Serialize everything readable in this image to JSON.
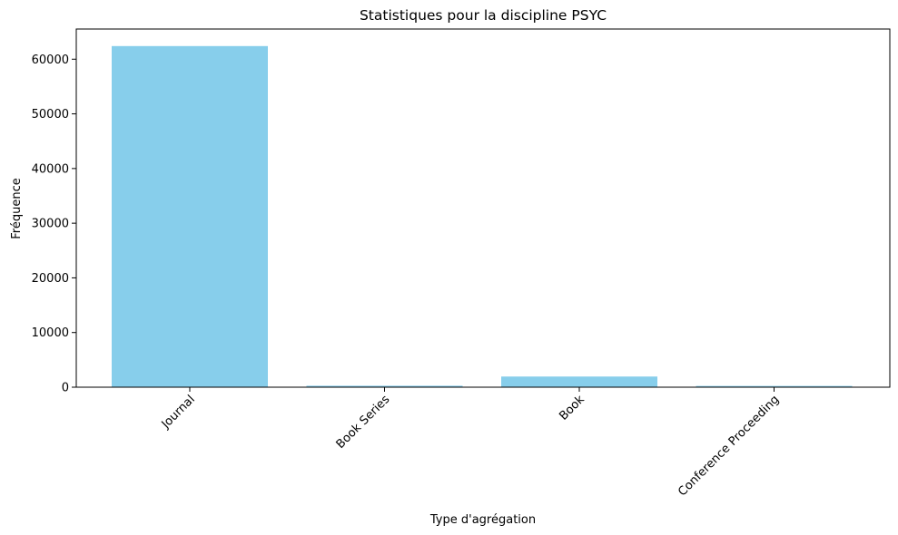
{
  "chart_data": {
    "type": "bar",
    "title": "Statistiques pour la discipline PSYC",
    "xlabel": "Type d'agrégation",
    "ylabel": "Fréquence",
    "categories": [
      "Journal",
      "Book Series",
      "Book",
      "Conference Proceeding"
    ],
    "values": [
      62400,
      270,
      1950,
      230
    ],
    "ylim": [
      0,
      65520
    ],
    "yticks": [
      0,
      10000,
      20000,
      30000,
      40000,
      50000,
      60000
    ],
    "bar_color": "#87ceeb",
    "grid": false,
    "legend": "none"
  }
}
